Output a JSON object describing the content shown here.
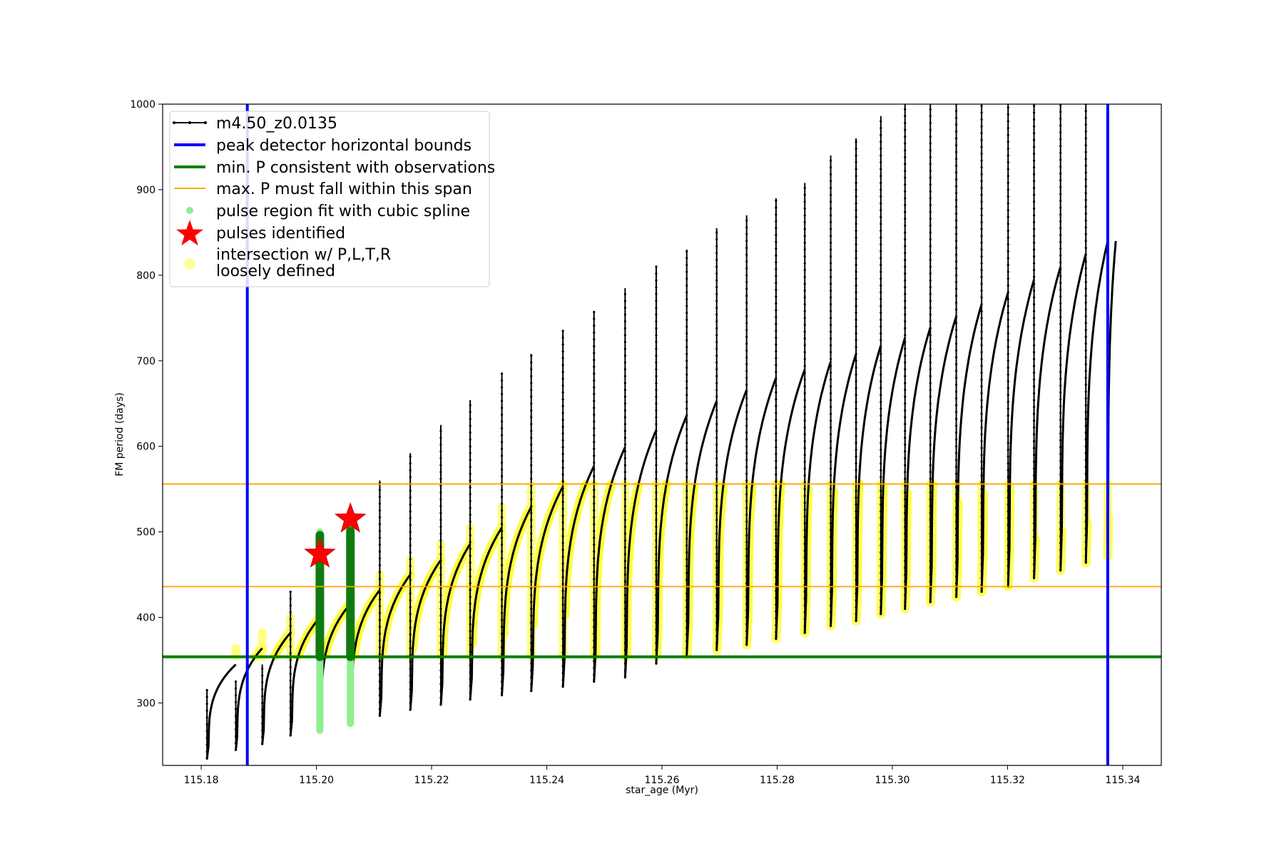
{
  "chart_data": {
    "type": "scatter",
    "title": "",
    "xlabel": "star_age (Myr)",
    "ylabel": "FM period (days)",
    "xlim": [
      115.1733,
      115.3467
    ],
    "ylim": [
      227,
      1000
    ],
    "xticks": [
      115.18,
      115.2,
      115.22,
      115.24,
      115.26,
      115.28,
      115.3,
      115.32,
      115.34
    ],
    "yticks": [
      300,
      400,
      500,
      600,
      700,
      800,
      900,
      1000
    ],
    "grid": false,
    "legend_position": "top-left",
    "legend": [
      {
        "label": "m4.50_z0.0135",
        "marker": "line-dot",
        "color": "#000000"
      },
      {
        "label": "peak detector horizontal bounds",
        "marker": "line",
        "color": "#0000ff"
      },
      {
        "label": "min. P consistent with observations",
        "marker": "line",
        "color": "#008000"
      },
      {
        "label": "max. P must fall within this span",
        "marker": "line",
        "color": "#ffa500"
      },
      {
        "label": "pulse region fit with cubic spline",
        "marker": "dot",
        "color": "#90ee90"
      },
      {
        "label": "pulses identified",
        "marker": "star",
        "color": "#ff0000"
      },
      {
        "label_lines": [
          "intersection w/ P,L,T,R",
          "loosely defined"
        ],
        "marker": "big-dot",
        "color": "#ffff99"
      }
    ],
    "vertical_lines": [
      {
        "name": "peak detector horizontal bounds",
        "x": 115.188,
        "color": "#0000ff"
      },
      {
        "name": "peak detector horizontal bounds",
        "x": 115.3374,
        "color": "#0000ff"
      }
    ],
    "horizontal_lines": [
      {
        "name": "min. P consistent with observations",
        "y": 354,
        "color": "#008000"
      },
      {
        "name": "max. P must fall within this span",
        "y": 436,
        "color": "#ffa500"
      },
      {
        "name": "max. P must fall within this span",
        "y": 556,
        "color": "#ffa500"
      }
    ],
    "pulses_identified": [
      {
        "x": 115.2006,
        "y": 474
      },
      {
        "x": 115.2059,
        "y": 515
      }
    ],
    "cycles": [
      {
        "start": 115.181,
        "end": 115.186,
        "spike_top": 315,
        "trough": 235,
        "plateau": 345
      },
      {
        "start": 115.186,
        "end": 115.1906,
        "spike_top": 325,
        "trough": 245,
        "plateau": 364
      },
      {
        "start": 115.1906,
        "end": 115.1955,
        "spike_top": 345,
        "trough": 252,
        "plateau": 382
      },
      {
        "start": 115.1955,
        "end": 115.2006,
        "spike_top": 430,
        "trough": 262,
        "plateau": 400
      },
      {
        "start": 115.2006,
        "end": 115.2059,
        "spike_top": 490,
        "trough": 270,
        "plateau": 416
      },
      {
        "start": 115.2059,
        "end": 115.211,
        "spike_top": 525,
        "trough": 278,
        "plateau": 432
      },
      {
        "start": 115.211,
        "end": 115.2163,
        "spike_top": 560,
        "trough": 285,
        "plateau": 450
      },
      {
        "start": 115.2163,
        "end": 115.2216,
        "spike_top": 592,
        "trough": 292,
        "plateau": 467
      },
      {
        "start": 115.2216,
        "end": 115.2267,
        "spike_top": 625,
        "trough": 298,
        "plateau": 486
      },
      {
        "start": 115.2267,
        "end": 115.2322,
        "spike_top": 654,
        "trough": 304,
        "plateau": 505
      },
      {
        "start": 115.2322,
        "end": 115.2373,
        "spike_top": 686,
        "trough": 309,
        "plateau": 529
      },
      {
        "start": 115.2373,
        "end": 115.2428,
        "spike_top": 708,
        "trough": 314,
        "plateau": 553
      },
      {
        "start": 115.2428,
        "end": 115.2482,
        "spike_top": 735,
        "trough": 319,
        "plateau": 577
      },
      {
        "start": 115.2482,
        "end": 115.2536,
        "spike_top": 758,
        "trough": 325,
        "plateau": 599
      },
      {
        "start": 115.2536,
        "end": 115.259,
        "spike_top": 785,
        "trough": 330,
        "plateau": 619
      },
      {
        "start": 115.259,
        "end": 115.2643,
        "spike_top": 810,
        "trough": 346,
        "plateau": 636
      },
      {
        "start": 115.2643,
        "end": 115.2695,
        "spike_top": 830,
        "trough": 356,
        "plateau": 653
      },
      {
        "start": 115.2695,
        "end": 115.2747,
        "spike_top": 855,
        "trough": 362,
        "plateau": 666
      },
      {
        "start": 115.2747,
        "end": 115.2798,
        "spike_top": 870,
        "trough": 368,
        "plateau": 680
      },
      {
        "start": 115.2798,
        "end": 115.2848,
        "spike_top": 890,
        "trough": 375,
        "plateau": 690
      },
      {
        "start": 115.2848,
        "end": 115.2893,
        "spike_top": 908,
        "trough": 382,
        "plateau": 699
      },
      {
        "start": 115.2893,
        "end": 115.2937,
        "spike_top": 940,
        "trough": 390,
        "plateau": 708
      },
      {
        "start": 115.2937,
        "end": 115.298,
        "spike_top": 960,
        "trough": 396,
        "plateau": 718
      },
      {
        "start": 115.298,
        "end": 115.3022,
        "spike_top": 986,
        "trough": 404,
        "plateau": 727
      },
      {
        "start": 115.3022,
        "end": 115.3066,
        "spike_top": 1000,
        "trough": 410,
        "plateau": 739
      },
      {
        "start": 115.3066,
        "end": 115.3111,
        "spike_top": 1000,
        "trough": 418,
        "plateau": 752
      },
      {
        "start": 115.3111,
        "end": 115.3155,
        "spike_top": 1000,
        "trough": 424,
        "plateau": 766
      },
      {
        "start": 115.3155,
        "end": 115.3201,
        "spike_top": 1000,
        "trough": 430,
        "plateau": 780
      },
      {
        "start": 115.3201,
        "end": 115.3246,
        "spike_top": 1000,
        "trough": 436,
        "plateau": 795
      },
      {
        "start": 115.3246,
        "end": 115.3292,
        "spike_top": 1000,
        "trough": 446,
        "plateau": 810
      },
      {
        "start": 115.3292,
        "end": 115.3336,
        "spike_top": 1000,
        "trough": 455,
        "plateau": 825
      },
      {
        "start": 115.3336,
        "end": 115.3374,
        "spike_top": 1000,
        "trough": 464,
        "plateau": 840
      },
      {
        "start": 115.3374,
        "end": 115.3388,
        "spike_top": 1000,
        "trough": 472,
        "plateau": 840
      }
    ],
    "spline_fit_pulses": [
      {
        "x": 115.2006,
        "y_low": 268,
        "y_high": 500
      },
      {
        "x": 115.2059,
        "y_low": 276,
        "y_high": 505
      }
    ],
    "loose_intersection_band": {
      "y_min": 354,
      "y_max": 556,
      "x_min": 115.188,
      "x_max": 115.3374
    }
  }
}
